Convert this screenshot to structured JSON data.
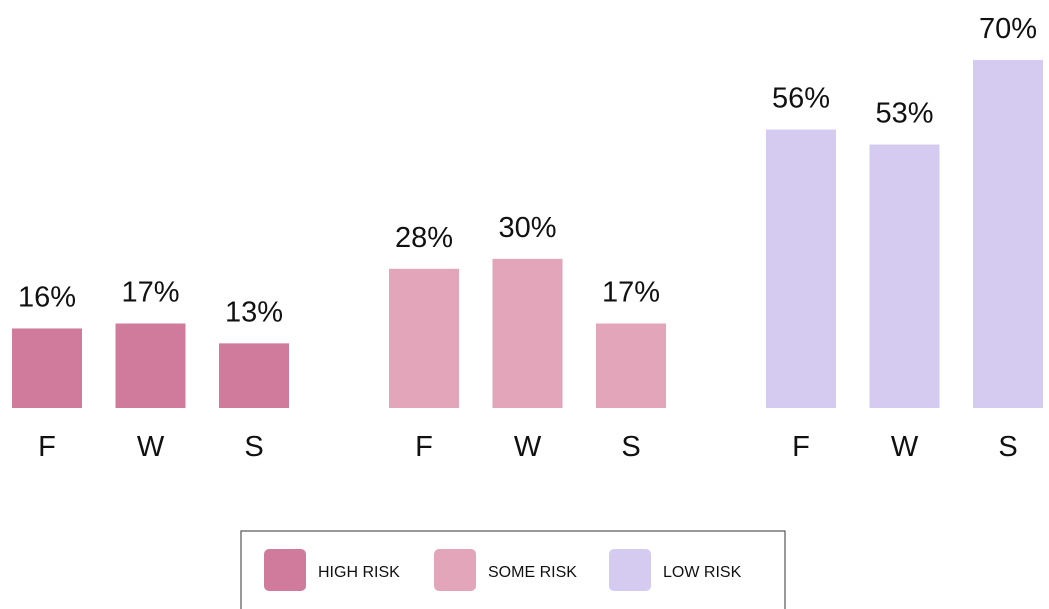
{
  "chart_data": {
    "type": "bar",
    "categories": [
      "F",
      "W",
      "S"
    ],
    "series": [
      {
        "name": "HIGH RISK",
        "color": "#d07b9c",
        "values": [
          16,
          17,
          13
        ],
        "value_labels": [
          "16%",
          "17%",
          "13%"
        ]
      },
      {
        "name": "SOME RISK",
        "color": "#e3a5ba",
        "values": [
          28,
          30,
          17
        ],
        "value_labels": [
          "28%",
          "30%",
          "17%"
        ]
      },
      {
        "name": "LOW RISK",
        "color": "#d5cbf0",
        "values": [
          56,
          53,
          70
        ],
        "value_labels": [
          "56%",
          "53%",
          "70%"
        ]
      }
    ],
    "legend": "bottom"
  }
}
